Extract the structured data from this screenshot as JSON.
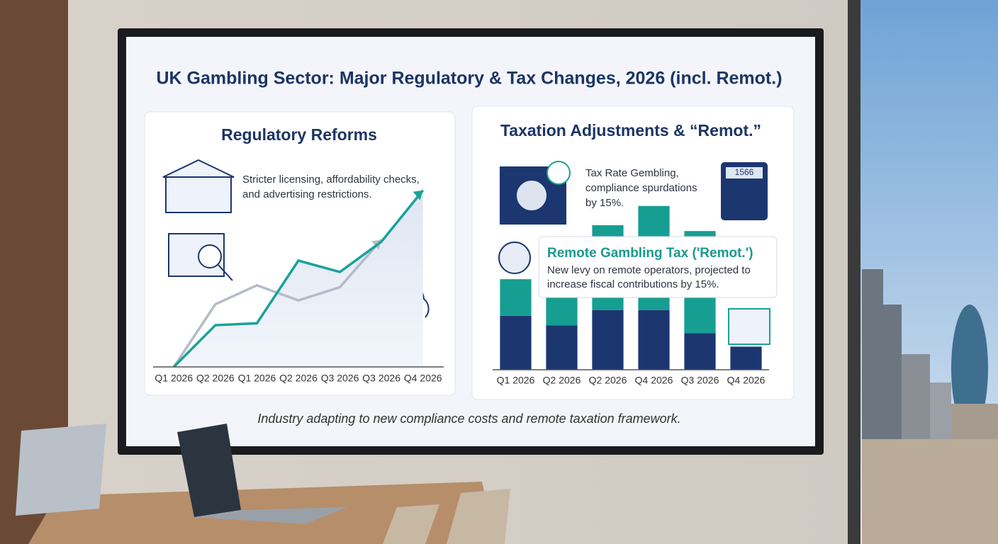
{
  "title": "UK Gambling Sector: Major Regulatory & Tax Changes, 2026 (incl. Remot.)",
  "regulatory": {
    "heading": "Regulatory Reforms",
    "text": [
      "Stricter licensing, affordability checks,",
      "and advertising restrictions."
    ]
  },
  "taxation": {
    "heading": "Taxation Adjustments & “Remot.”",
    "text": [
      "Tax Rate Gembling,",
      "compliance spurdations",
      "by 15%."
    ],
    "calculator": "1566",
    "callout": {
      "title": "Remote Gambling Tax ('Remot.')",
      "text": [
        "New levy on remote operators, projected to",
        "increase fiscal contributions by 15%."
      ]
    }
  },
  "footer": "Industry adapting to new compliance costs and remote taxation framework.",
  "chart_data": [
    {
      "type": "line",
      "categories": [
        "Q1 2026",
        "Q2 2026",
        "Q1 2026",
        "Q2 2026",
        "Q3 2026",
        "Q3 2026",
        "Q4 2026"
      ],
      "ylim": [
        0,
        100
      ],
      "series": [
        {
          "color": "#b4bcc8",
          "values": [
            0,
            33,
            43,
            35,
            42,
            67,
            null
          ]
        },
        {
          "color": "#17a398",
          "values": [
            0,
            22,
            23,
            56,
            50,
            66,
            93
          ]
        }
      ]
    },
    {
      "type": "bar",
      "stacked": true,
      "categories": [
        "Q1 2026",
        "Q2 2026",
        "Q2 2026",
        "Q4 2026",
        "Q3 2026",
        "Q4 2026"
      ],
      "ylim": [
        0,
        100
      ],
      "series": [
        {
          "color": "#1c3670",
          "values": [
            28,
            23,
            31,
            31,
            19,
            12
          ]
        },
        {
          "color": "#169e92",
          "values": [
            19,
            15,
            44,
            54,
            53,
            0
          ]
        }
      ]
    }
  ]
}
